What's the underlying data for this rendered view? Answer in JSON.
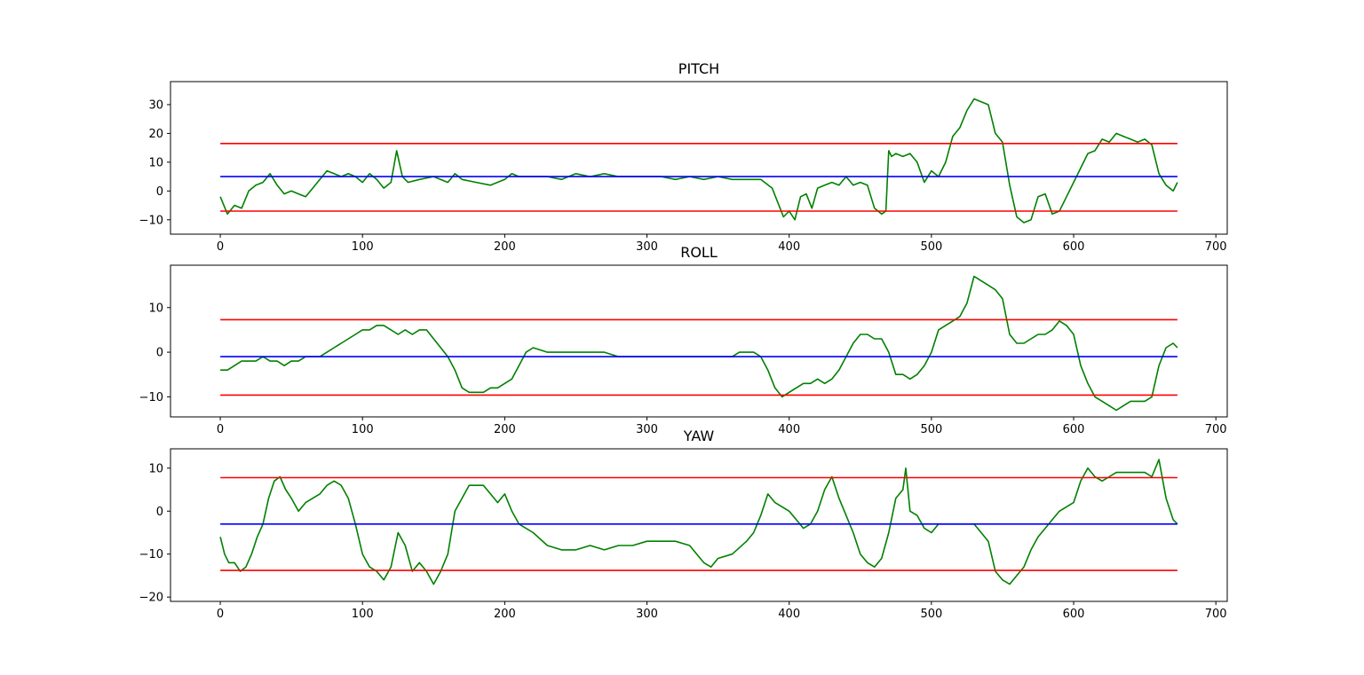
{
  "figure": {
    "background": "#ffffff"
  },
  "chart_data": [
    {
      "type": "line",
      "title": "PITCH",
      "xlabel": "",
      "ylabel": "",
      "xlim": [
        -35,
        708
      ],
      "ylim": [
        -15,
        38
      ],
      "xticks": [
        0,
        100,
        200,
        300,
        400,
        500,
        600,
        700
      ],
      "yticks": [
        -10,
        0,
        10,
        20,
        30
      ],
      "grid": false,
      "legend": "none",
      "series": [
        {
          "role": "signal",
          "color": "#008000",
          "x": [
            0,
            5,
            10,
            15,
            20,
            25,
            30,
            35,
            40,
            45,
            50,
            55,
            60,
            65,
            70,
            75,
            80,
            85,
            90,
            95,
            100,
            105,
            110,
            115,
            120,
            124,
            128,
            132,
            140,
            150,
            160,
            165,
            170,
            180,
            190,
            200,
            205,
            210,
            220,
            230,
            240,
            250,
            260,
            270,
            280,
            290,
            300,
            310,
            320,
            330,
            340,
            350,
            360,
            370,
            380,
            388,
            392,
            396,
            400,
            404,
            408,
            412,
            416,
            420,
            425,
            430,
            435,
            440,
            445,
            450,
            455,
            460,
            465,
            468,
            470,
            472,
            475,
            480,
            485,
            490,
            495,
            500,
            505,
            510,
            515,
            520,
            525,
            530,
            535,
            540,
            545,
            550,
            555,
            560,
            565,
            570,
            575,
            580,
            585,
            590,
            595,
            600,
            605,
            610,
            615,
            620,
            625,
            630,
            635,
            640,
            645,
            650,
            655,
            660,
            665,
            670,
            673
          ],
          "y": [
            -2,
            -8,
            -5,
            -6,
            0,
            2,
            3,
            6,
            2,
            -1,
            0,
            -1,
            -2,
            1,
            4,
            7,
            6,
            5,
            6,
            5,
            3,
            6,
            4,
            1,
            3,
            14,
            5,
            3,
            4,
            5,
            3,
            6,
            4,
            3,
            2,
            4,
            6,
            5,
            5,
            5,
            4,
            6,
            5,
            6,
            5,
            5,
            5,
            5,
            4,
            5,
            4,
            5,
            4,
            4,
            4,
            1,
            -4,
            -9,
            -7,
            -10,
            -2,
            -1,
            -6,
            1,
            2,
            3,
            2,
            5,
            2,
            3,
            2,
            -6,
            -8,
            -7,
            14,
            12,
            13,
            12,
            13,
            10,
            3,
            7,
            5,
            10,
            19,
            22,
            28,
            32,
            31,
            30,
            20,
            17,
            2,
            -9,
            -11,
            -10,
            -2,
            -1,
            -8,
            -7,
            -2,
            3,
            8,
            13,
            14,
            18,
            17,
            20,
            19,
            18,
            17,
            18,
            16,
            6,
            2,
            0,
            3
          ]
        },
        {
          "role": "mean",
          "color": "#0000ff",
          "x": [
            0,
            673
          ],
          "y": [
            5,
            5
          ]
        },
        {
          "role": "upper-bound",
          "color": "#ff0000",
          "x": [
            0,
            673
          ],
          "y": [
            16.5,
            16.5
          ]
        },
        {
          "role": "lower-bound",
          "color": "#ff0000",
          "x": [
            0,
            673
          ],
          "y": [
            -7,
            -7
          ]
        }
      ]
    },
    {
      "type": "line",
      "title": "ROLL",
      "xlabel": "",
      "ylabel": "",
      "xlim": [
        -35,
        708
      ],
      "ylim": [
        -14.5,
        19.5
      ],
      "xticks": [
        0,
        100,
        200,
        300,
        400,
        500,
        600,
        700
      ],
      "yticks": [
        -10,
        0,
        10
      ],
      "grid": false,
      "legend": "none",
      "series": [
        {
          "role": "signal",
          "color": "#008000",
          "x": [
            0,
            5,
            10,
            15,
            20,
            25,
            30,
            35,
            40,
            45,
            50,
            55,
            60,
            65,
            70,
            75,
            80,
            85,
            90,
            95,
            100,
            105,
            110,
            115,
            120,
            125,
            130,
            135,
            140,
            145,
            150,
            155,
            160,
            165,
            170,
            175,
            180,
            185,
            190,
            195,
            200,
            205,
            210,
            215,
            220,
            230,
            240,
            250,
            260,
            270,
            280,
            290,
            300,
            310,
            320,
            330,
            340,
            350,
            360,
            365,
            370,
            375,
            380,
            385,
            390,
            395,
            400,
            405,
            410,
            415,
            420,
            425,
            430,
            435,
            440,
            445,
            450,
            455,
            460,
            465,
            470,
            475,
            480,
            485,
            490,
            495,
            500,
            505,
            510,
            515,
            520,
            525,
            530,
            535,
            540,
            545,
            550,
            555,
            560,
            565,
            570,
            575,
            580,
            585,
            590,
            595,
            600,
            605,
            610,
            615,
            620,
            625,
            630,
            635,
            640,
            645,
            650,
            655,
            660,
            665,
            670,
            673
          ],
          "y": [
            -4,
            -4,
            -3,
            -2,
            -2,
            -2,
            -1,
            -2,
            -2,
            -3,
            -2,
            -2,
            -1,
            -1,
            -1,
            0,
            1,
            2,
            3,
            4,
            5,
            5,
            6,
            6,
            5,
            4,
            5,
            4,
            5,
            5,
            3,
            1,
            -1,
            -4,
            -8,
            -9,
            -9,
            -9,
            -8,
            -8,
            -7,
            -6,
            -3,
            0,
            1,
            0,
            0,
            0,
            0,
            0,
            -1,
            -1,
            -1,
            -1,
            -1,
            -1,
            -1,
            -1,
            -1,
            0,
            0,
            0,
            -1,
            -4,
            -8,
            -10,
            -9,
            -8,
            -7,
            -7,
            -6,
            -7,
            -6,
            -4,
            -1,
            2,
            4,
            4,
            3,
            3,
            0,
            -5,
            -5,
            -6,
            -5,
            -3,
            0,
            5,
            6,
            7,
            8,
            11,
            17,
            16,
            15,
            14,
            12,
            4,
            2,
            2,
            3,
            4,
            4,
            5,
            7,
            6,
            4,
            -3,
            -7,
            -10,
            -11,
            -12,
            -13,
            -12,
            -11,
            -11,
            -11,
            -10,
            -3,
            1,
            2,
            1
          ]
        },
        {
          "role": "mean",
          "color": "#0000ff",
          "x": [
            0,
            673
          ],
          "y": [
            -1,
            -1
          ]
        },
        {
          "role": "upper-bound",
          "color": "#ff0000",
          "x": [
            0,
            673
          ],
          "y": [
            7.3,
            7.3
          ]
        },
        {
          "role": "lower-bound",
          "color": "#ff0000",
          "x": [
            0,
            673
          ],
          "y": [
            -9.6,
            -9.6
          ]
        }
      ]
    },
    {
      "type": "line",
      "title": "YAW",
      "xlabel": "",
      "ylabel": "",
      "xlim": [
        -35,
        708
      ],
      "ylim": [
        -21,
        14.5
      ],
      "xticks": [
        0,
        100,
        200,
        300,
        400,
        500,
        600,
        700
      ],
      "yticks": [
        -20,
        -10,
        0,
        10
      ],
      "grid": false,
      "legend": "none",
      "series": [
        {
          "role": "signal",
          "color": "#008000",
          "x": [
            0,
            3,
            6,
            10,
            14,
            18,
            22,
            26,
            30,
            34,
            38,
            42,
            46,
            50,
            55,
            60,
            65,
            70,
            75,
            80,
            85,
            90,
            95,
            100,
            105,
            110,
            115,
            120,
            125,
            130,
            135,
            140,
            145,
            150,
            155,
            160,
            165,
            170,
            175,
            180,
            185,
            190,
            195,
            200,
            205,
            210,
            220,
            230,
            240,
            250,
            260,
            270,
            280,
            290,
            300,
            310,
            320,
            330,
            335,
            340,
            345,
            350,
            360,
            370,
            375,
            380,
            385,
            390,
            395,
            400,
            405,
            410,
            415,
            420,
            425,
            430,
            435,
            440,
            445,
            450,
            455,
            460,
            465,
            470,
            475,
            480,
            482,
            485,
            490,
            495,
            500,
            505,
            510,
            520,
            530,
            540,
            545,
            550,
            555,
            560,
            565,
            570,
            575,
            580,
            585,
            590,
            595,
            600,
            605,
            610,
            615,
            620,
            625,
            630,
            640,
            650,
            655,
            660,
            665,
            670,
            673
          ],
          "y": [
            -6,
            -10,
            -12,
            -12,
            -14,
            -13,
            -10,
            -6,
            -3,
            3,
            7,
            8,
            5,
            3,
            0,
            2,
            3,
            4,
            6,
            7,
            6,
            3,
            -3,
            -10,
            -13,
            -14,
            -16,
            -13,
            -5,
            -8,
            -14,
            -12,
            -14,
            -17,
            -14,
            -10,
            0,
            3,
            6,
            6,
            6,
            4,
            2,
            4,
            0,
            -3,
            -5,
            -8,
            -9,
            -9,
            -8,
            -9,
            -8,
            -8,
            -7,
            -7,
            -7,
            -8,
            -10,
            -12,
            -13,
            -11,
            -10,
            -7,
            -5,
            -1,
            4,
            2,
            1,
            0,
            -2,
            -4,
            -3,
            0,
            5,
            8,
            3,
            -1,
            -5,
            -10,
            -12,
            -13,
            -11,
            -5,
            3,
            5,
            10,
            0,
            -1,
            -4,
            -5,
            -3,
            -3,
            -3,
            -3,
            -7,
            -14,
            -16,
            -17,
            -15,
            -13,
            -9,
            -6,
            -4,
            -2,
            0,
            1,
            2,
            7,
            10,
            8,
            7,
            8,
            9,
            9,
            9,
            8,
            12,
            3,
            -2,
            -3
          ]
        },
        {
          "role": "mean",
          "color": "#0000ff",
          "x": [
            0,
            673
          ],
          "y": [
            -3,
            -3
          ]
        },
        {
          "role": "upper-bound",
          "color": "#ff0000",
          "x": [
            0,
            673
          ],
          "y": [
            7.8,
            7.8
          ]
        },
        {
          "role": "lower-bound",
          "color": "#ff0000",
          "x": [
            0,
            673
          ],
          "y": [
            -13.8,
            -13.8
          ]
        }
      ]
    }
  ]
}
